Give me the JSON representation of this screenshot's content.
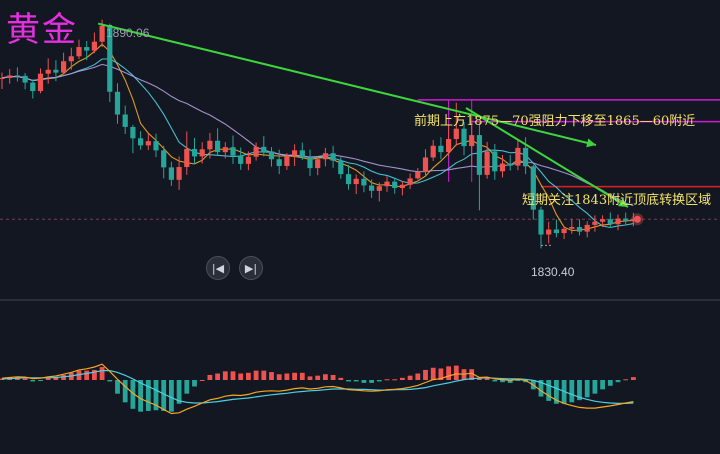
{
  "title": "黄金",
  "colors": {
    "up": "#ef5350",
    "down": "#26a69a",
    "ma_fast": "#f5a623",
    "ma_slow": "#b39ddb",
    "trend_green": "#3cd63c",
    "zone_magenta": "#d21ad2",
    "support_red": "#e02020",
    "annotation": "#f3e26a",
    "title": "#e52fe0"
  },
  "icons": {
    "prev": "skip-back-icon",
    "next": "skip-forward-icon"
  },
  "chart_data": [
    {
      "type": "candlestick",
      "symbol": "黄金",
      "title": "",
      "annotations": [
        "前期上方1875—70强阻力下移至1865—60附近",
        "短期关注1843附近顶底转换区域"
      ],
      "high_label": "1890.06",
      "low_label": "1830.40",
      "high_value": 1890.06,
      "low_value": 1830.4,
      "levels": [
        {
          "role": "resistance-upper",
          "value": 1868
        },
        {
          "role": "resistance-lower",
          "value": 1863
        },
        {
          "role": "support",
          "value": 1843
        }
      ],
      "current_price": 1835.5,
      "ylim": [
        1815,
        1895
      ],
      "candles": [
        [
          1875.0,
          1876.8,
          1872.2,
          1875.3
        ],
        [
          1875.3,
          1877.8,
          1873.7,
          1876.0
        ],
        [
          1876.0,
          1878.3,
          1874.3,
          1875.9
        ],
        [
          1875.9,
          1876.7,
          1872.1,
          1874.0
        ],
        [
          1874.0,
          1874.9,
          1869.5,
          1871.6
        ],
        [
          1871.6,
          1878.0,
          1871.0,
          1876.5
        ],
        [
          1876.5,
          1880.8,
          1873.7,
          1877.6
        ],
        [
          1877.6,
          1880.3,
          1874.4,
          1876.8
        ],
        [
          1876.8,
          1882.4,
          1876.6,
          1880.0
        ],
        [
          1880.0,
          1883.8,
          1877.6,
          1881.4
        ],
        [
          1881.4,
          1886.1,
          1880.6,
          1884.0
        ],
        [
          1884.0,
          1885.7,
          1880.3,
          1883.0
        ],
        [
          1883.0,
          1888.1,
          1882.3,
          1885.5
        ],
        [
          1885.5,
          1891.7,
          1884.0,
          1890.0
        ],
        [
          1890.0,
          1890.6,
          1868.5,
          1871.4
        ],
        [
          1871.4,
          1873.8,
          1862.4,
          1865.0
        ],
        [
          1865.0,
          1867.5,
          1859.5,
          1861.5
        ],
        [
          1861.5,
          1862.1,
          1854.1,
          1858.3
        ],
        [
          1858.3,
          1860.3,
          1855.1,
          1856.3
        ],
        [
          1856.3,
          1859.7,
          1855.0,
          1857.5
        ],
        [
          1857.5,
          1859.6,
          1853.0,
          1854.9
        ],
        [
          1854.9,
          1856.2,
          1847.0,
          1850.1
        ],
        [
          1850.1,
          1851.7,
          1844.9,
          1846.6
        ],
        [
          1846.6,
          1853.2,
          1843.8,
          1850.2
        ],
        [
          1850.2,
          1860.2,
          1848.0,
          1855.3
        ],
        [
          1855.3,
          1858.4,
          1850.9,
          1853.2
        ],
        [
          1853.2,
          1857.2,
          1851.2,
          1855.2
        ],
        [
          1855.2,
          1859.8,
          1852.6,
          1857.6
        ],
        [
          1857.6,
          1861.1,
          1853.6,
          1854.4
        ],
        [
          1854.4,
          1857.2,
          1852.6,
          1855.8
        ],
        [
          1855.8,
          1859.1,
          1851.1,
          1853.4
        ],
        [
          1853.4,
          1855.7,
          1849.4,
          1851.1
        ],
        [
          1851.1,
          1854.6,
          1849.3,
          1853.1
        ],
        [
          1853.1,
          1857.1,
          1852.0,
          1855.9
        ],
        [
          1855.9,
          1858.9,
          1853.2,
          1854.6
        ],
        [
          1854.6,
          1855.8,
          1850.3,
          1852.4
        ],
        [
          1852.4,
          1855.1,
          1848.2,
          1850.5
        ],
        [
          1850.5,
          1854.1,
          1849.4,
          1853.4
        ],
        [
          1853.4,
          1856.6,
          1850.5,
          1854.9
        ],
        [
          1854.9,
          1857.1,
          1852.2,
          1853.0
        ],
        [
          1853.0,
          1855.1,
          1847.7,
          1849.9
        ],
        [
          1849.9,
          1853.1,
          1847.9,
          1852.4
        ],
        [
          1852.4,
          1855.6,
          1850.4,
          1854.1
        ],
        [
          1854.1,
          1856.2,
          1850.0,
          1852.0
        ],
        [
          1852.0,
          1853.0,
          1846.9,
          1848.2
        ],
        [
          1848.2,
          1850.8,
          1843.8,
          1845.4
        ],
        [
          1845.4,
          1848.1,
          1842.6,
          1846.9
        ],
        [
          1846.9,
          1849.0,
          1843.1,
          1845.0
        ],
        [
          1845.0,
          1846.7,
          1841.5,
          1843.5
        ],
        [
          1843.5,
          1845.9,
          1840.5,
          1844.8
        ],
        [
          1844.8,
          1847.6,
          1843.2,
          1846.1
        ],
        [
          1846.1,
          1847.2,
          1842.7,
          1844.3
        ],
        [
          1844.3,
          1846.3,
          1842.2,
          1845.2
        ],
        [
          1845.2,
          1848.4,
          1844.0,
          1847.0
        ],
        [
          1847.0,
          1849.9,
          1846.7,
          1848.8
        ],
        [
          1848.8,
          1855.2,
          1847.4,
          1852.9
        ],
        [
          1852.9,
          1857.8,
          1851.9,
          1856.2
        ],
        [
          1856.2,
          1858.6,
          1852.4,
          1854.4
        ],
        [
          1854.4,
          1862.2,
          1853.2,
          1858.1
        ],
        [
          1858.1,
          1868.3,
          1856.2,
          1861.0
        ],
        [
          1861.0,
          1862.9,
          1853.5,
          1856.1
        ],
        [
          1856.1,
          1863.3,
          1850.8,
          1859.2
        ],
        [
          1859.2,
          1862.8,
          1838.0,
          1848.0
        ],
        [
          1848.0,
          1857.3,
          1846.9,
          1854.6
        ],
        [
          1854.6,
          1856.7,
          1846.6,
          1849.0
        ],
        [
          1849.0,
          1853.6,
          1847.3,
          1851.2
        ],
        [
          1851.2,
          1853.6,
          1849.2,
          1850.6
        ],
        [
          1850.6,
          1857.9,
          1849.3,
          1855.6
        ],
        [
          1855.6,
          1858.6,
          1848.2,
          1850.4
        ],
        [
          1850.4,
          1850.8,
          1835.4,
          1838.2
        ],
        [
          1838.2,
          1839.0,
          1827.3,
          1831.2
        ],
        [
          1831.2,
          1834.8,
          1828.7,
          1832.6
        ],
        [
          1832.6,
          1835.4,
          1830.4,
          1831.6
        ],
        [
          1831.6,
          1833.6,
          1829.9,
          1832.8
        ],
        [
          1832.8,
          1835.6,
          1831.4,
          1833.3
        ],
        [
          1833.3,
          1835.5,
          1830.9,
          1832.0
        ],
        [
          1832.0,
          1834.9,
          1830.4,
          1833.9
        ],
        [
          1833.9,
          1836.6,
          1832.0,
          1834.8
        ],
        [
          1834.8,
          1836.6,
          1833.3,
          1835.5
        ],
        [
          1835.5,
          1837.4,
          1833.1,
          1834.1
        ],
        [
          1834.1,
          1836.8,
          1832.4,
          1835.7
        ],
        [
          1835.7,
          1837.4,
          1833.8,
          1835.0
        ],
        [
          1835.0,
          1837.3,
          1833.5,
          1835.5
        ]
      ],
      "moving_averages": [
        {
          "name": "MA5",
          "color": "#f5a623",
          "period": 5
        },
        {
          "name": "MA10",
          "color": "#4dd0e1",
          "period": 10
        },
        {
          "name": "MA20",
          "color": "#b39ddb",
          "period": 20
        }
      ]
    },
    {
      "type": "macd",
      "title": "",
      "dif": [
        0.5,
        0.7,
        0.9,
        0.8,
        0.4,
        0.5,
        0.9,
        1.1,
        1.6,
        2.1,
        2.8,
        3.1,
        3.6,
        4.4,
        2.4,
        0.2,
        -1.8,
        -3.7,
        -5.2,
        -6.1,
        -7.0,
        -8.2,
        -9.3,
        -9.1,
        -8.1,
        -7.3,
        -6.4,
        -5.5,
        -5.1,
        -4.5,
        -4.2,
        -4.3,
        -4.0,
        -3.4,
        -3.1,
        -3.0,
        -3.1,
        -2.8,
        -2.4,
        -2.2,
        -2.5,
        -2.3,
        -1.9,
        -1.8,
        -2.2,
        -2.7,
        -2.8,
        -3.0,
        -3.1,
        -3.0,
        -2.7,
        -2.6,
        -2.4,
        -2.0,
        -1.5,
        -0.7,
        0.1,
        0.4,
        1.1,
        1.7,
        1.6,
        1.9,
        0.7,
        0.8,
        0.3,
        0.1,
        -0.1,
        0.2,
        -0.1,
        -1.4,
        -3.0,
        -4.4,
        -5.6,
        -6.5,
        -7.1,
        -7.6,
        -7.8,
        -7.8,
        -7.5,
        -7.2,
        -6.8,
        -6.4,
        -6.0
      ],
      "dea": [
        0.3,
        0.4,
        0.5,
        0.6,
        0.6,
        0.6,
        0.6,
        0.7,
        0.9,
        1.1,
        1.5,
        1.8,
        2.2,
        2.6,
        2.6,
        2.1,
        1.3,
        0.3,
        -0.8,
        -1.8,
        -2.8,
        -3.9,
        -4.9,
        -5.8,
        -6.2,
        -6.4,
        -6.4,
        -6.2,
        -6.0,
        -5.7,
        -5.4,
        -5.2,
        -5.0,
        -4.7,
        -4.4,
        -4.1,
        -3.9,
        -3.7,
        -3.4,
        -3.2,
        -3.0,
        -2.9,
        -2.7,
        -2.5,
        -2.5,
        -2.5,
        -2.6,
        -2.6,
        -2.7,
        -2.8,
        -2.8,
        -2.7,
        -2.7,
        -2.6,
        -2.4,
        -2.1,
        -1.6,
        -1.2,
        -0.8,
        -0.3,
        0.1,
        0.4,
        0.5,
        0.6,
        0.5,
        0.4,
        0.3,
        0.3,
        0.2,
        -0.1,
        -0.7,
        -1.5,
        -2.3,
        -3.2,
        -4.0,
        -4.8,
        -5.4,
        -5.9,
        -6.2,
        -6.4,
        -6.5,
        -6.5,
        -6.4
      ]
    }
  ]
}
